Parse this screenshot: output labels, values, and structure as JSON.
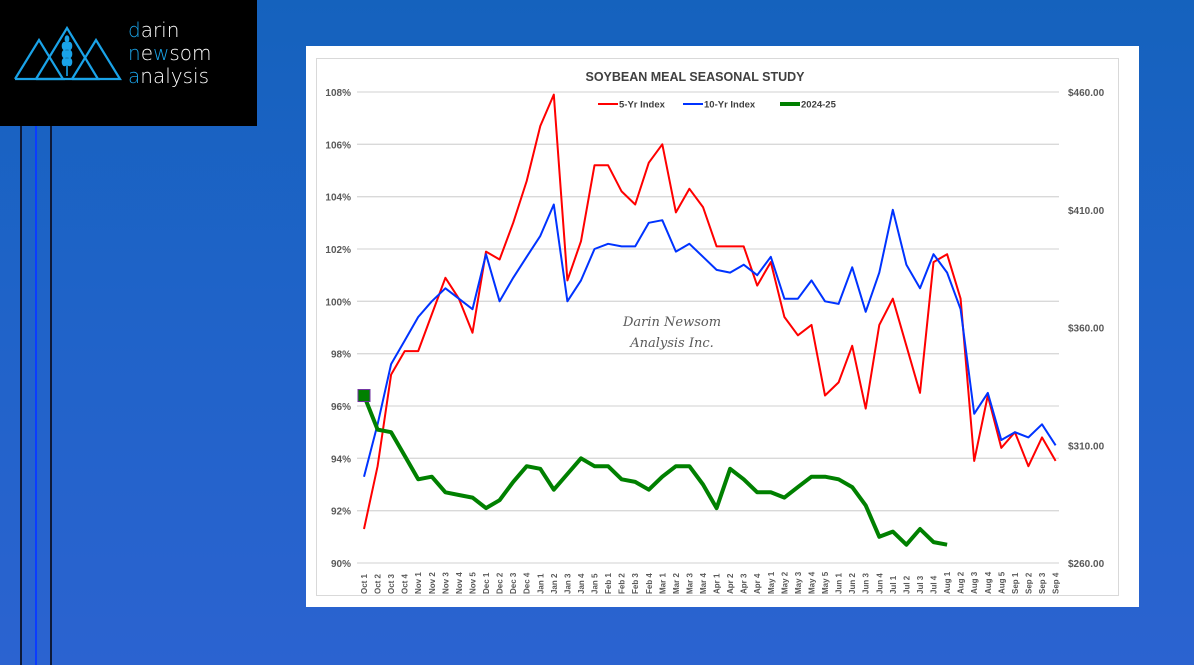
{
  "brand": {
    "line1": {
      "accent": "d",
      "rest": "arin"
    },
    "line2": {
      "accent": "n",
      "mid": "e",
      "accent2": "w",
      "rest": "som"
    },
    "line3": {
      "accent": "a",
      "rest": "nalysis"
    },
    "accent_color": "#1aa3e8"
  },
  "chart_data": {
    "type": "line",
    "title": "SOYBEAN MEAL SEASONAL STUDY",
    "watermark": [
      "Darin Newsom",
      "Analysis Inc."
    ],
    "legend_position": "top-center",
    "grid": true,
    "xlabel": "",
    "ylabel": "",
    "ylim": [
      90,
      108
    ],
    "y_ticks": [
      "108%",
      "106%",
      "104%",
      "102%",
      "100%",
      "98%",
      "96%",
      "94%",
      "92%",
      "90%"
    ],
    "y2lim": [
      260,
      460
    ],
    "y2_ticks": [
      "$460.00",
      "$410.00",
      "$360.00",
      "$310.00",
      "$260.00"
    ],
    "categories": [
      "Oct 1",
      "Oct 2",
      "Oct 3",
      "Oct 4",
      "Nov 1",
      "Nov 2",
      "Nov 3",
      "Nov 4",
      "Nov 5",
      "Dec 1",
      "Dec 2",
      "Dec 3",
      "Dec 4",
      "Jan 1",
      "Jan 2",
      "Jan 3",
      "Jan 4",
      "Jan 5",
      "Feb 1",
      "Feb 2",
      "Feb 3",
      "Feb 4",
      "Mar 1",
      "Mar 2",
      "Mar 3",
      "Mar 4",
      "Apr 1",
      "Apr 2",
      "Apr 3",
      "Apr 4",
      "May 1",
      "May 2",
      "May 3",
      "May 4",
      "May 5",
      "Jun 1",
      "Jun 2",
      "Jun 3",
      "Jun 4",
      "Jul 1",
      "Jul 2",
      "Jul 3",
      "Jul 4",
      "Aug 1",
      "Aug 2",
      "Aug 3",
      "Aug 4",
      "Aug 5",
      "Sep 1",
      "Sep 2",
      "Sep 3",
      "Sep 4"
    ],
    "series": [
      {
        "name": "5-Yr Index",
        "color": "#ff0000",
        "axis": "left",
        "values": [
          91.3,
          93.7,
          97.2,
          98.1,
          98.1,
          99.5,
          100.9,
          100.1,
          98.8,
          101.9,
          101.6,
          103.0,
          104.6,
          106.7,
          107.9,
          100.8,
          102.3,
          105.2,
          105.2,
          104.2,
          103.7,
          105.3,
          106.0,
          103.4,
          104.3,
          103.6,
          102.1,
          102.1,
          102.1,
          100.6,
          101.5,
          99.4,
          98.7,
          99.1,
          96.4,
          96.9,
          98.3,
          95.9,
          99.1,
          100.1,
          98.3,
          96.5,
          101.5,
          101.8,
          100.1,
          93.9,
          96.4,
          94.4,
          95.0,
          93.7,
          94.8,
          93.9
        ]
      },
      {
        "name": "10-Yr Index",
        "color": "#0033ff",
        "axis": "left",
        "values": [
          93.3,
          95.3,
          97.6,
          98.5,
          99.4,
          100.0,
          100.5,
          100.1,
          99.7,
          101.8,
          100.0,
          100.9,
          101.7,
          102.5,
          103.7,
          100.0,
          100.8,
          102.0,
          102.2,
          102.1,
          102.1,
          103.0,
          103.1,
          101.9,
          102.2,
          101.7,
          101.2,
          101.1,
          101.4,
          101.0,
          101.7,
          100.1,
          100.1,
          100.8,
          100.0,
          99.9,
          101.3,
          99.6,
          101.1,
          103.5,
          101.4,
          100.5,
          101.8,
          101.1,
          99.7,
          95.7,
          96.5,
          94.7,
          95.0,
          94.8,
          95.3,
          94.5
        ]
      },
      {
        "name": "2024-25",
        "color": "#008000",
        "axis": "left",
        "values": [
          96.4,
          95.1,
          95.0,
          94.1,
          93.2,
          93.3,
          92.7,
          92.6,
          92.5,
          92.1,
          92.4,
          93.1,
          93.7,
          93.6,
          92.8,
          93.4,
          94.0,
          93.7,
          93.7,
          93.2,
          93.1,
          92.8,
          93.3,
          93.7,
          93.7,
          93.0,
          92.1,
          93.6,
          93.2,
          92.7,
          92.7,
          92.5,
          92.9,
          93.3,
          93.3,
          93.2,
          92.9,
          92.2,
          91.0,
          91.2,
          90.7,
          91.3,
          90.8,
          90.7
        ]
      }
    ]
  }
}
